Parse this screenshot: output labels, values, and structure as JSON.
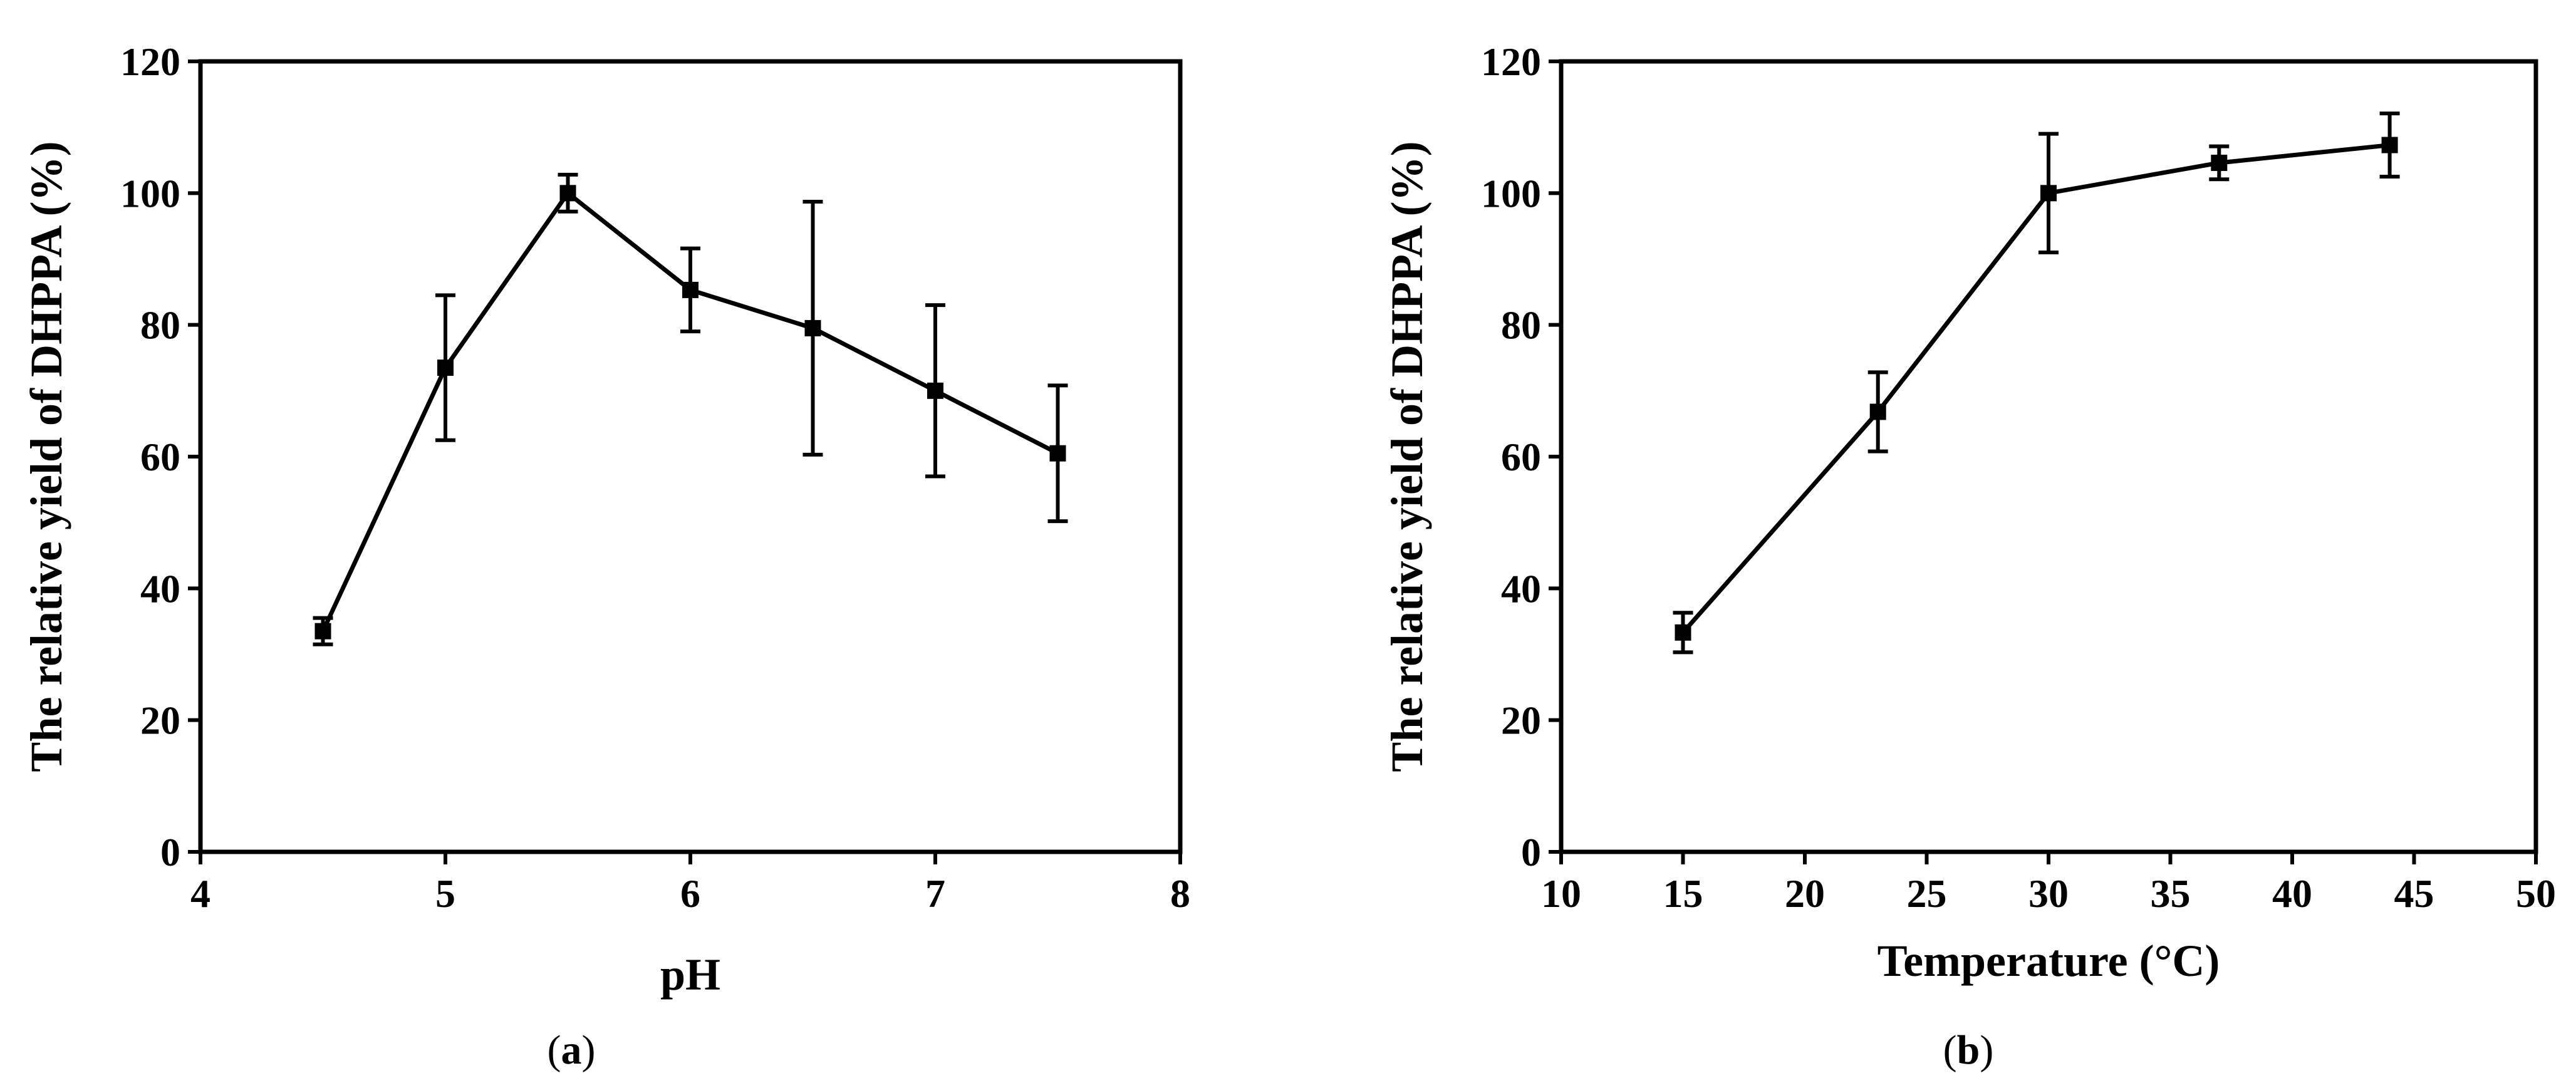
{
  "figure": {
    "panels": [
      {
        "id": "a",
        "caption_open": "(",
        "caption_letter": "a",
        "caption_close": ")"
      },
      {
        "id": "b",
        "caption_open": "(",
        "caption_letter": "b",
        "caption_close": ")"
      }
    ]
  },
  "chart_data": [
    {
      "type": "line",
      "panel": "a",
      "xlabel": "pH",
      "ylabel": "The relative yield of DHPPA (%)",
      "xlim": [
        4,
        8
      ],
      "ylim": [
        0,
        120
      ],
      "xticks": [
        4,
        5,
        6,
        7,
        8
      ],
      "yticks": [
        0,
        20,
        40,
        60,
        80,
        100,
        120
      ],
      "grid": false,
      "marker": "square",
      "color": "#000000",
      "series": [
        {
          "x": [
            4.5,
            5.0,
            5.5,
            6.0,
            6.5,
            7.0,
            7.5
          ],
          "y": [
            33.5,
            73.5,
            100.0,
            85.3,
            79.5,
            70.0,
            60.5
          ],
          "error": [
            2.0,
            11.0,
            2.8,
            6.3,
            19.2,
            13.0,
            10.3
          ]
        }
      ]
    },
    {
      "type": "line",
      "panel": "b",
      "xlabel": "Temperature (°C)",
      "ylabel": "The relative yield of DHPPA (%)",
      "xlim": [
        10,
        50
      ],
      "ylim": [
        0,
        120
      ],
      "xticks": [
        10,
        15,
        20,
        25,
        30,
        35,
        40,
        45,
        50
      ],
      "yticks": [
        0,
        20,
        40,
        60,
        80,
        100,
        120
      ],
      "grid": false,
      "marker": "square",
      "color": "#000000",
      "series": [
        {
          "x": [
            15,
            23,
            30,
            37,
            44
          ],
          "y": [
            33.3,
            66.8,
            100.0,
            104.6,
            107.3
          ],
          "error": [
            3.0,
            6.0,
            9.0,
            2.5,
            4.8
          ]
        }
      ]
    }
  ]
}
